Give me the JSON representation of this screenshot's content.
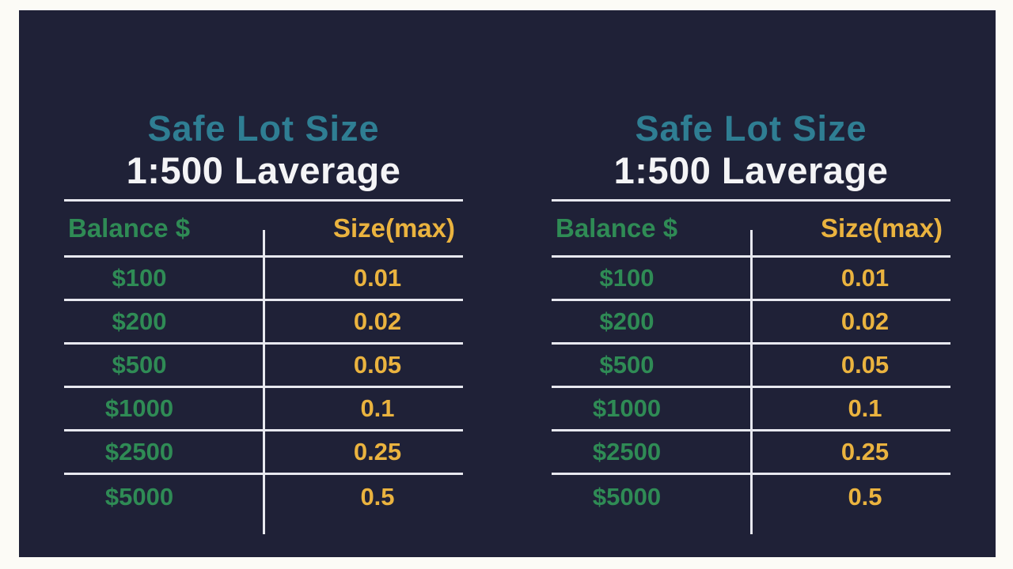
{
  "page": {
    "outer_background": "#fcfbf6",
    "panel_color": "#1f2137"
  },
  "colors": {
    "title_teal": "#2f7e93",
    "subtitle_white": "#f4f4f6",
    "balance_green": "#2f8b55",
    "size_yellow": "#eab33f",
    "divider_line": "#e7e8ef"
  },
  "tables": [
    {
      "title": "Safe Lot Size",
      "subtitle": "1:500 Laverage",
      "columns": [
        "Balance $",
        "Size(max)"
      ],
      "rows": [
        {
          "balance": "$100",
          "size": "0.01"
        },
        {
          "balance": "$200",
          "size": "0.02"
        },
        {
          "balance": "$500",
          "size": "0.05"
        },
        {
          "balance": "$1000",
          "size": "0.1"
        },
        {
          "balance": "$2500",
          "size": "0.25"
        },
        {
          "balance": "$5000",
          "size": "0.5"
        }
      ]
    },
    {
      "title": "Safe Lot Size",
      "subtitle": "1:500 Laverage",
      "columns": [
        "Balance $",
        "Size(max)"
      ],
      "rows": [
        {
          "balance": "$100",
          "size": "0.01"
        },
        {
          "balance": "$200",
          "size": "0.02"
        },
        {
          "balance": "$500",
          "size": "0.05"
        },
        {
          "balance": "$1000",
          "size": "0.1"
        },
        {
          "balance": "$2500",
          "size": "0.25"
        },
        {
          "balance": "$5000",
          "size": "0.5"
        }
      ]
    }
  ],
  "chart_data": [
    {
      "type": "table",
      "title": "Safe Lot Size",
      "subtitle": "1:500 Laverage",
      "columns": [
        "Balance $",
        "Size(max)"
      ],
      "categories": [
        "$100",
        "$200",
        "$500",
        "$1000",
        "$2500",
        "$5000"
      ],
      "values": [
        0.01,
        0.02,
        0.05,
        0.1,
        0.25,
        0.5
      ]
    },
    {
      "type": "table",
      "title": "Safe Lot Size",
      "subtitle": "1:500 Laverage",
      "columns": [
        "Balance $",
        "Size(max)"
      ],
      "categories": [
        "$100",
        "$200",
        "$500",
        "$1000",
        "$2500",
        "$5000"
      ],
      "values": [
        0.01,
        0.02,
        0.05,
        0.1,
        0.25,
        0.5
      ]
    }
  ]
}
